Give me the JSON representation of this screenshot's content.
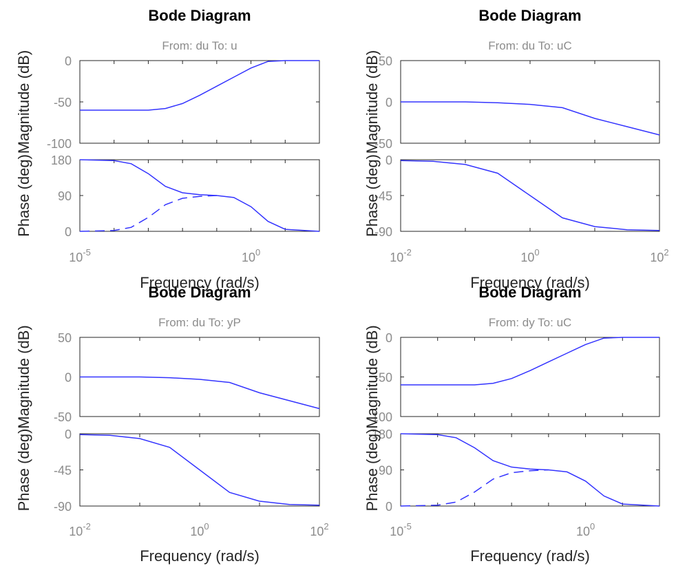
{
  "figure": {
    "xlabel": "Frequency  (rad/s)",
    "ylabel_mag": "Magnitude (dB)",
    "ylabel_phase": "Phase (deg)"
  },
  "colors": {
    "curve": "#3333ff",
    "axis": "#262626",
    "tick_text": "#8c8c8c"
  },
  "chart_data": [
    {
      "type": "line",
      "title": "Bode Diagram",
      "subtitle": "From: du  To: u",
      "xscale": "log",
      "xlim_exp": [
        -5,
        2
      ],
      "xtick_exps": [
        -5,
        0
      ],
      "mag": {
        "ylim": [
          -100,
          0
        ],
        "yticks": [
          0,
          -50,
          -100
        ],
        "series": [
          {
            "style": "solid",
            "x_exp": [
              -5,
              -3,
              -2.5,
              -2,
              -1.5,
              -1,
              -0.5,
              0,
              0.5,
              1,
              2
            ],
            "y": [
              -60,
              -60,
              -58,
              -52,
              -42,
              -31,
              -20,
              -9,
              -1,
              0,
              0
            ]
          }
        ]
      },
      "phase": {
        "ylim": [
          0,
          180
        ],
        "yticks": [
          180,
          90,
          0
        ],
        "series": [
          {
            "style": "solid",
            "x_exp": [
              -5,
              -4,
              -3.5,
              -3,
              -2.5,
              -2,
              -1.5,
              -1,
              -0.5,
              0,
              0.5,
              1,
              2
            ],
            "y": [
              180,
              178,
              170,
              145,
              113,
              97,
              92,
              90,
              85,
              62,
              25,
              5,
              0
            ]
          },
          {
            "style": "dashed",
            "x_exp": [
              -5,
              -4,
              -3.5,
              -3,
              -2.5,
              -2,
              -1.5,
              -1
            ],
            "y": [
              0,
              2,
              10,
              35,
              67,
              83,
              88,
              90
            ]
          }
        ]
      }
    },
    {
      "type": "line",
      "title": "Bode Diagram",
      "subtitle": "From: du  To: uC",
      "xscale": "log",
      "xlim_exp": [
        -2,
        2
      ],
      "xtick_exps": [
        -2,
        0,
        2
      ],
      "mag": {
        "ylim": [
          -50,
          50
        ],
        "yticks": [
          50,
          0,
          -50
        ],
        "series": [
          {
            "style": "solid",
            "x_exp": [
              -2,
              -1,
              -0.5,
              0,
              0.5,
              1,
              1.5,
              2
            ],
            "y": [
              0,
              0,
              -1,
              -3,
              -7,
              -20,
              -30,
              -40
            ]
          }
        ]
      },
      "phase": {
        "ylim": [
          -90,
          0
        ],
        "yticks": [
          0,
          -45,
          -90
        ],
        "series": [
          {
            "style": "solid",
            "x_exp": [
              -2,
              -1.5,
              -1,
              -0.5,
              0,
              0.5,
              1,
              1.5,
              2
            ],
            "y": [
              -1,
              -2,
              -6,
              -17,
              -45,
              -73,
              -84,
              -88,
              -89
            ]
          }
        ]
      }
    },
    {
      "type": "line",
      "title": "Bode Diagram",
      "subtitle": "From: du  To: yP",
      "xscale": "log",
      "xlim_exp": [
        -2,
        2
      ],
      "xtick_exps": [
        -2,
        0,
        2
      ],
      "mag": {
        "ylim": [
          -50,
          50
        ],
        "yticks": [
          50,
          0,
          -50
        ],
        "series": [
          {
            "style": "solid",
            "x_exp": [
              -2,
              -1,
              -0.5,
              0,
              0.5,
              1,
              1.5,
              2
            ],
            "y": [
              0,
              0,
              -1,
              -3,
              -7,
              -20,
              -30,
              -40
            ]
          }
        ]
      },
      "phase": {
        "ylim": [
          -90,
          0
        ],
        "yticks": [
          0,
          -45,
          -90
        ],
        "series": [
          {
            "style": "solid",
            "x_exp": [
              -2,
              -1.5,
              -1,
              -0.5,
              0,
              0.5,
              1,
              1.5,
              2
            ],
            "y": [
              -1,
              -2,
              -6,
              -17,
              -45,
              -73,
              -84,
              -88,
              -89
            ]
          }
        ]
      }
    },
    {
      "type": "line",
      "title": "Bode Diagram",
      "subtitle": "From: dy  To: uC",
      "xscale": "log",
      "xlim_exp": [
        -5,
        2
      ],
      "xtick_exps": [
        -5,
        0
      ],
      "mag": {
        "ylim": [
          -100,
          0
        ],
        "yticks": [
          0,
          -50,
          -100
        ],
        "series": [
          {
            "style": "solid",
            "x_exp": [
              -5,
              -3,
              -2.5,
              -2,
              -1.5,
              -1,
              -0.5,
              0,
              0.5,
              1,
              2
            ],
            "y": [
              -60,
              -60,
              -58,
              -52,
              -42,
              -31,
              -20,
              -9,
              -1,
              0,
              0
            ]
          }
        ]
      },
      "phase": {
        "ylim": [
          0,
          180
        ],
        "yticks": [
          180,
          90,
          0
        ],
        "series": [
          {
            "style": "solid",
            "x_exp": [
              -5,
              -4,
              -3.5,
              -3,
              -2.5,
              -2,
              -1.5,
              -1,
              -0.5,
              0,
              0.5,
              1,
              2
            ],
            "y": [
              180,
              178,
              170,
              145,
              113,
              97,
              92,
              90,
              85,
              62,
              25,
              5,
              0
            ]
          },
          {
            "style": "dashed",
            "x_exp": [
              -5,
              -4,
              -3.5,
              -3,
              -2.5,
              -2,
              -1.5,
              -1
            ],
            "y": [
              0,
              2,
              10,
              35,
              67,
              83,
              88,
              90
            ]
          }
        ]
      }
    }
  ]
}
